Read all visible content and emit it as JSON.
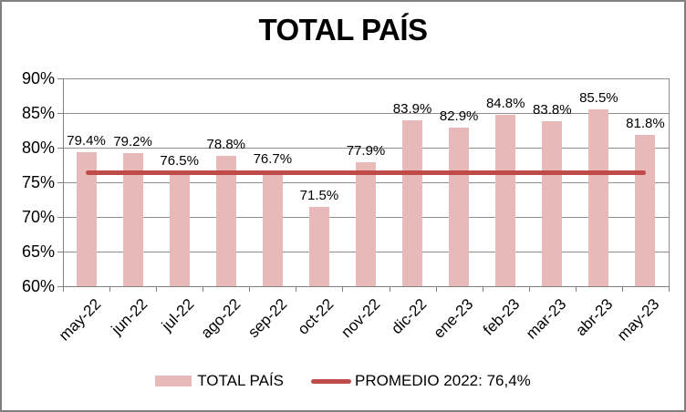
{
  "window": {
    "title": "TOTAL PAÍS"
  },
  "chart_data": {
    "type": "bar",
    "title": "TOTAL PAÍS",
    "categories": [
      "may-22",
      "jun-22",
      "jul-22",
      "ago-22",
      "sep-22",
      "oct-22",
      "nov-22",
      "dic-22",
      "ene-23",
      "feb-23",
      "mar-23",
      "abr-23",
      "may-23"
    ],
    "series": [
      {
        "name": "TOTAL PAÍS",
        "values": [
          79.4,
          79.2,
          76.5,
          78.8,
          76.7,
          71.5,
          77.9,
          83.9,
          82.9,
          84.8,
          83.8,
          85.5,
          81.8
        ]
      }
    ],
    "value_labels": [
      "79.4%",
      "79.2%",
      "76.5%",
      "78.8%",
      "76.7%",
      "71.5%",
      "77.9%",
      "83.9%",
      "82.9%",
      "84.8%",
      "83.8%",
      "85.5%",
      "81.8%"
    ],
    "reference_line": {
      "name": "PROMEDIO 2022: 76,4%",
      "value": 76.4
    },
    "ylim": [
      60,
      90
    ],
    "ytick_step": 5,
    "ytick_labels": [
      "60%",
      "65%",
      "70%",
      "75%",
      "80%",
      "85%",
      "90%"
    ],
    "xlabel": "",
    "ylabel": "",
    "grid": "horizontal",
    "legend_position": "bottom",
    "colors": {
      "bar": "#e7b9b8",
      "reference_line": "#be4b48",
      "axis": "#808080",
      "gridline": "#8f8f8f",
      "text": "#000000",
      "background": "#ffffff",
      "border": "#808080"
    }
  },
  "legend": {
    "items": [
      {
        "label": "TOTAL PAÍS",
        "swatch": "bar"
      },
      {
        "label": "PROMEDIO 2022: 76,4%",
        "swatch": "line"
      }
    ]
  }
}
